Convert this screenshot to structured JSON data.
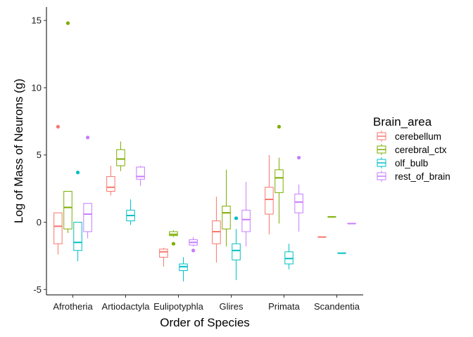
{
  "chart_data": {
    "type": "boxplot",
    "xlabel": "Order of Species",
    "ylabel": "Log of Mass of Neurons (g)",
    "ylim": [
      -5.4,
      16.0
    ],
    "yticks": [
      -5,
      0,
      5,
      10,
      15
    ],
    "ytick_labels": [
      "-5",
      "0",
      "5",
      "10",
      "15"
    ],
    "grid": false,
    "legend": {
      "title": "Brain_area",
      "placement": "right",
      "entries": [
        "cerebellum",
        "cerebral_ctx",
        "olf_bulb",
        "rest_of_brain"
      ]
    },
    "categories": [
      "Afrotheria",
      "Artiodactyla",
      "Eulipotyphla",
      "Glires",
      "Primata",
      "Scandentia"
    ],
    "series": [
      {
        "name": "cerebellum",
        "color": "#F8766D",
        "boxes": [
          {
            "category": "Afrotheria",
            "min": -2.4,
            "q1": -1.6,
            "median": -0.3,
            "q3": 0.7,
            "max": 0.7,
            "outliers": [
              7.1
            ]
          },
          {
            "category": "Artiodactyla",
            "min": 2.0,
            "q1": 2.3,
            "median": 2.6,
            "q3": 3.4,
            "max": 4.2,
            "outliers": []
          },
          {
            "category": "Eulipotyphla",
            "min": -3.3,
            "q1": -2.6,
            "median": -2.2,
            "q3": -2.0,
            "max": -1.9,
            "outliers": []
          },
          {
            "category": "Glires",
            "min": -3.0,
            "q1": -1.6,
            "median": -0.7,
            "q3": 0.1,
            "max": 1.9,
            "outliers": []
          },
          {
            "category": "Primata",
            "min": -0.9,
            "q1": 0.6,
            "median": 1.7,
            "q3": 2.6,
            "max": 5.0,
            "outliers": []
          },
          {
            "category": "Scandentia",
            "min": -1.1,
            "q1": -1.1,
            "median": -1.1,
            "q3": -1.1,
            "max": -1.1,
            "outliers": []
          }
        ]
      },
      {
        "name": "cerebral_ctx",
        "color": "#7CAE00",
        "boxes": [
          {
            "category": "Afrotheria",
            "min": -0.8,
            "q1": -0.5,
            "median": 1.1,
            "q3": 2.3,
            "max": 2.3,
            "outliers": [
              14.8
            ]
          },
          {
            "category": "Artiodactyla",
            "min": 3.8,
            "q1": 4.2,
            "median": 4.7,
            "q3": 5.4,
            "max": 6.0,
            "outliers": []
          },
          {
            "category": "Eulipotyphla",
            "min": -1.1,
            "q1": -1.0,
            "median": -0.9,
            "q3": -0.7,
            "max": -0.6,
            "outliers": [
              -1.6
            ]
          },
          {
            "category": "Glires",
            "min": -1.8,
            "q1": -0.5,
            "median": 0.7,
            "q3": 1.2,
            "max": 3.9,
            "outliers": []
          },
          {
            "category": "Primata",
            "min": -0.1,
            "q1": 2.2,
            "median": 3.3,
            "q3": 3.9,
            "max": 4.8,
            "outliers": [
              7.1
            ]
          },
          {
            "category": "Scandentia",
            "min": 0.4,
            "q1": 0.4,
            "median": 0.4,
            "q3": 0.4,
            "max": 0.4,
            "outliers": []
          }
        ]
      },
      {
        "name": "olf_bulb",
        "color": "#00BFC4",
        "boxes": [
          {
            "category": "Afrotheria",
            "min": -2.9,
            "q1": -2.1,
            "median": -1.5,
            "q3": 0.0,
            "max": 0.0,
            "outliers": [
              3.7
            ]
          },
          {
            "category": "Artiodactyla",
            "min": -0.2,
            "q1": 0.1,
            "median": 0.5,
            "q3": 0.9,
            "max": 1.7,
            "outliers": []
          },
          {
            "category": "Eulipotyphla",
            "min": -4.4,
            "q1": -3.6,
            "median": -3.3,
            "q3": -3.1,
            "max": -2.6,
            "outliers": []
          },
          {
            "category": "Glires",
            "min": -4.3,
            "q1": -2.8,
            "median": -2.1,
            "q3": -1.6,
            "max": -0.5,
            "outliers": [
              0.3
            ]
          },
          {
            "category": "Primata",
            "min": -3.5,
            "q1": -3.1,
            "median": -2.7,
            "q3": -2.2,
            "max": -1.6,
            "outliers": []
          },
          {
            "category": "Scandentia",
            "min": -2.3,
            "q1": -2.3,
            "median": -2.3,
            "q3": -2.3,
            "max": -2.3,
            "outliers": []
          }
        ]
      },
      {
        "name": "rest_of_brain",
        "color": "#C77CFF",
        "boxes": [
          {
            "category": "Afrotheria",
            "min": -1.2,
            "q1": -0.7,
            "median": 0.6,
            "q3": 1.4,
            "max": 1.4,
            "outliers": [
              6.3
            ]
          },
          {
            "category": "Artiodactyla",
            "min": 2.7,
            "q1": 3.2,
            "median": 3.4,
            "q3": 4.1,
            "max": 4.2,
            "outliers": []
          },
          {
            "category": "Eulipotyphla",
            "min": -1.8,
            "q1": -1.7,
            "median": -1.5,
            "q3": -1.3,
            "max": -1.1,
            "outliers": [
              -2.1
            ]
          },
          {
            "category": "Glires",
            "min": -1.8,
            "q1": -0.7,
            "median": 0.2,
            "q3": 0.9,
            "max": 3.0,
            "outliers": []
          },
          {
            "category": "Primata",
            "min": -0.7,
            "q1": 0.7,
            "median": 1.5,
            "q3": 2.1,
            "max": 2.8,
            "outliers": [
              4.8
            ]
          },
          {
            "category": "Scandentia",
            "min": -0.1,
            "q1": -0.1,
            "median": -0.1,
            "q3": -0.1,
            "max": -0.1,
            "outliers": []
          }
        ]
      }
    ]
  }
}
